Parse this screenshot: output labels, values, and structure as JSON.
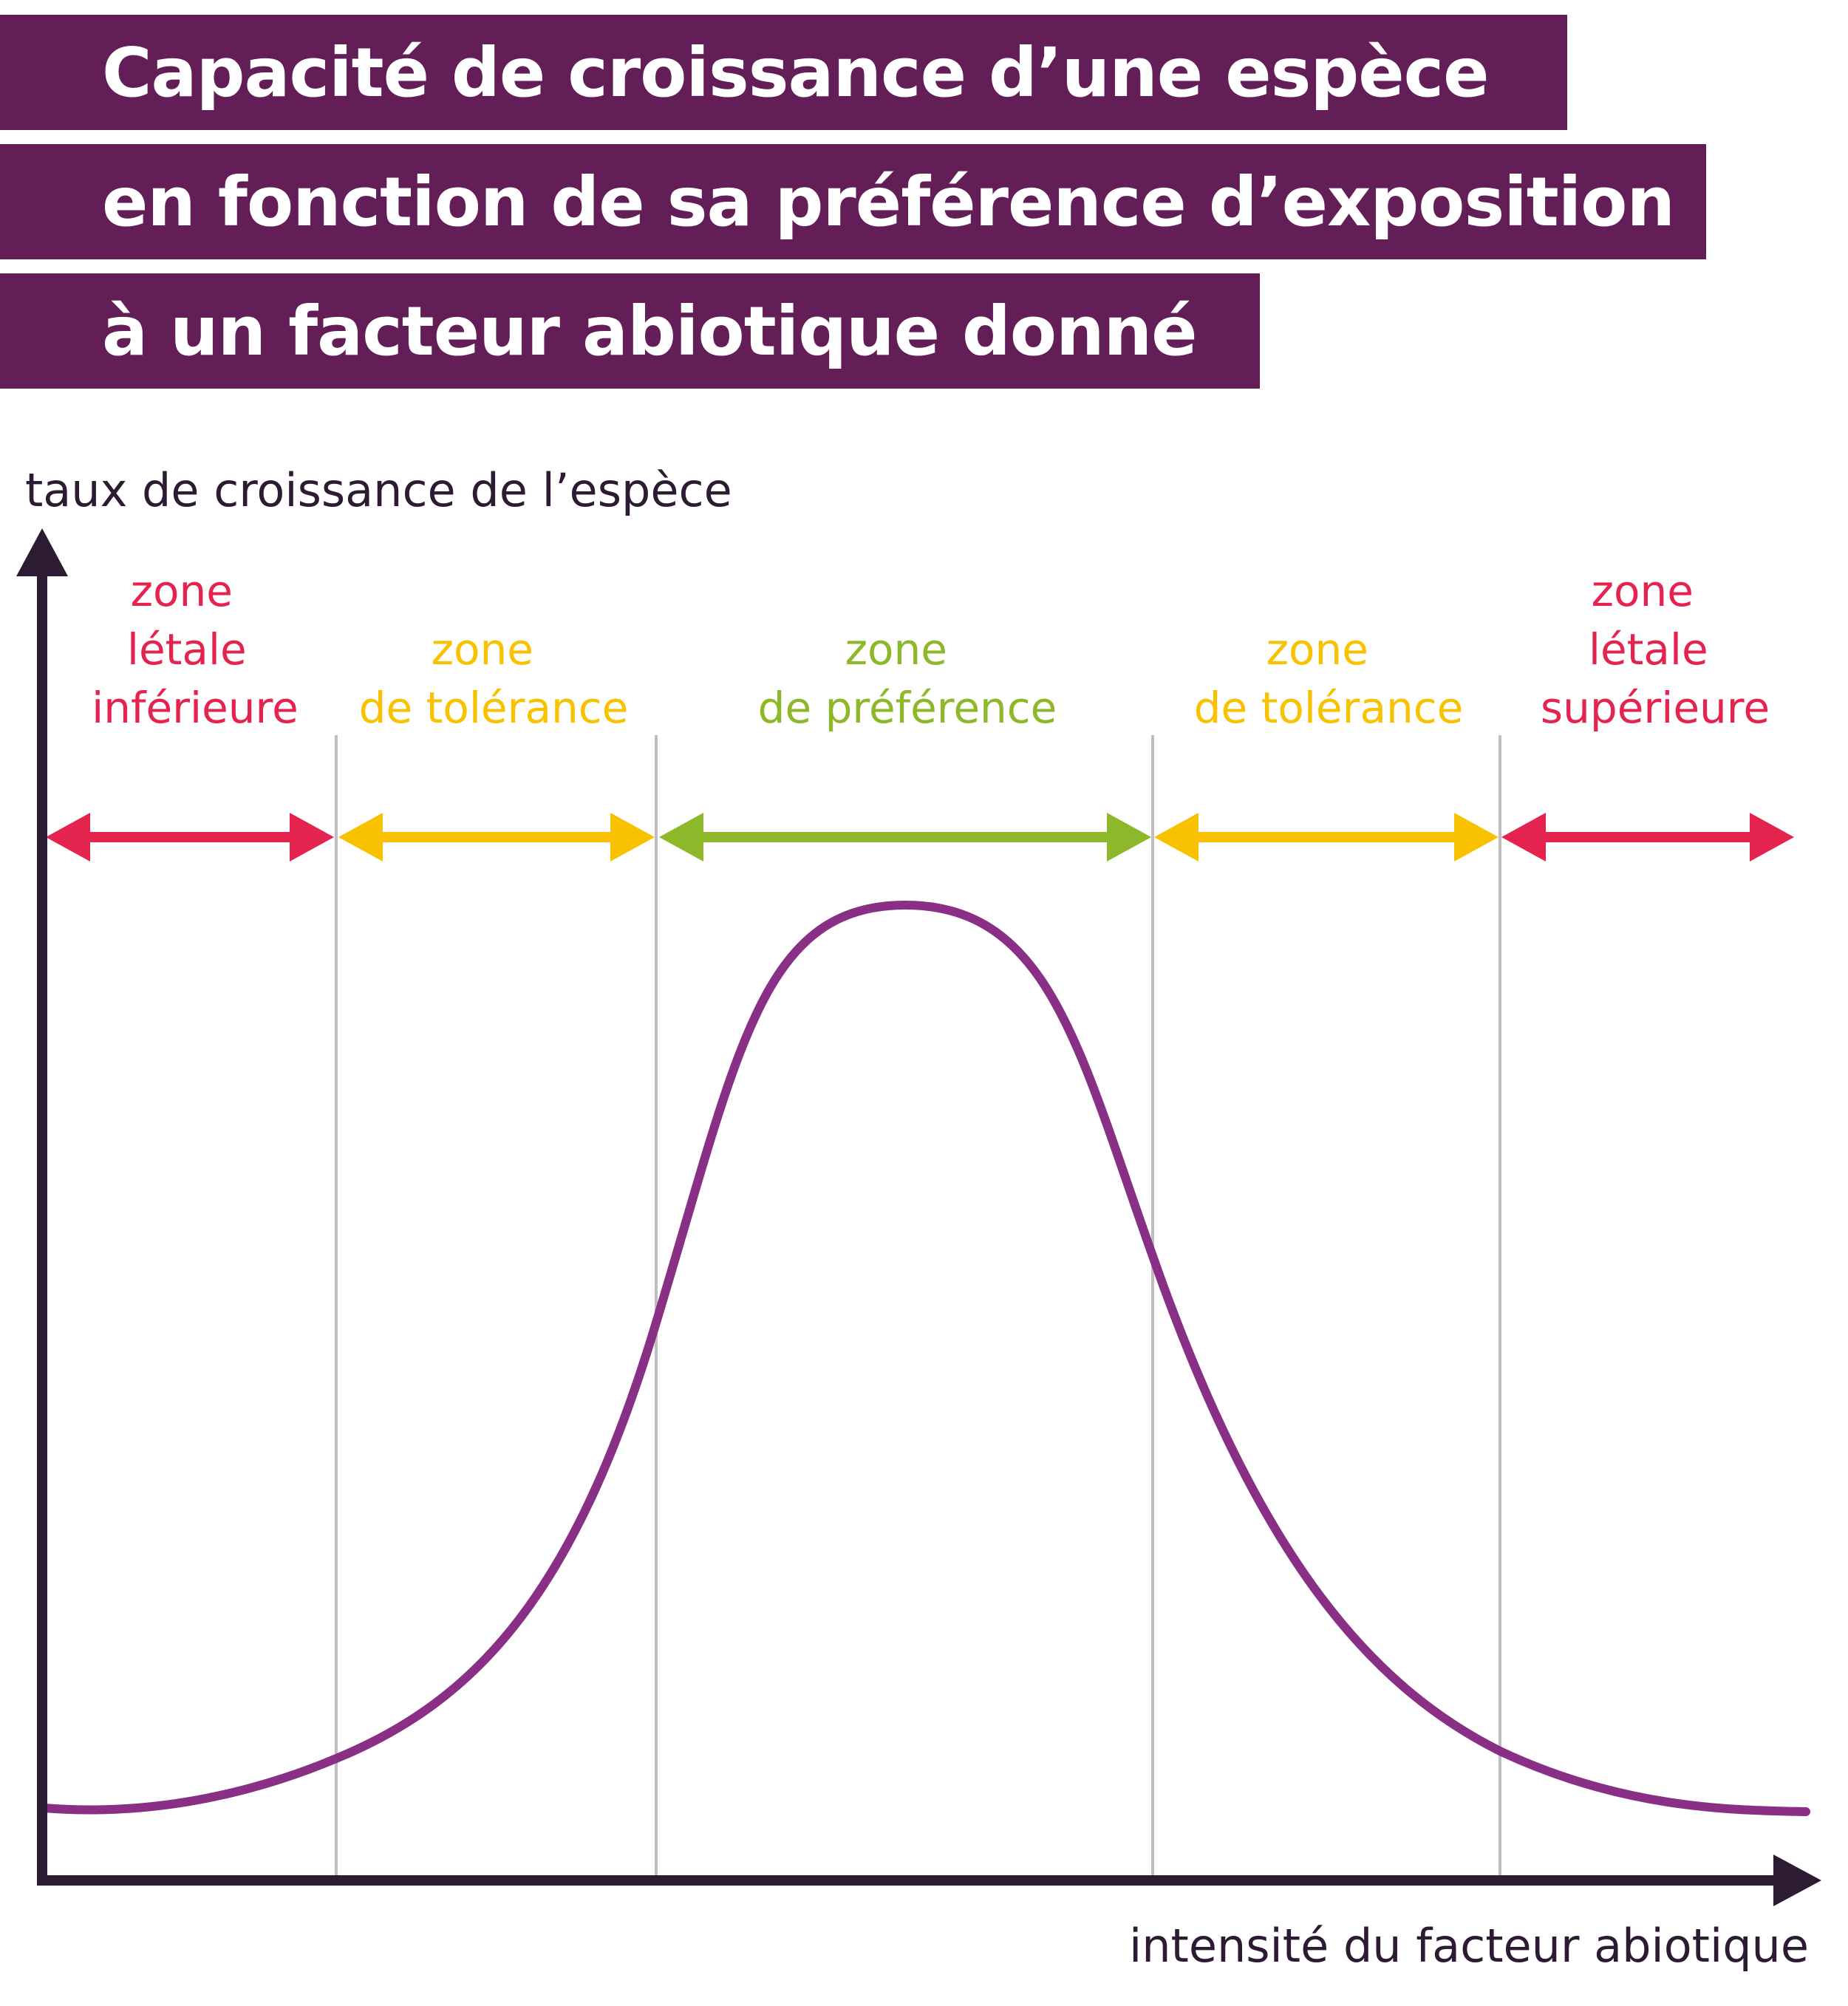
{
  "title": {
    "lines": [
      "Capacité de croissance d’une espèce",
      "en fonction de sa préférence d’exposition",
      "à un facteur abiotique donné"
    ],
    "band_color": "#631e58",
    "text_color": "#ffffff"
  },
  "axes": {
    "y_label": "taux de croissance de l’espèce",
    "x_label": "intensité du facteur abiotique",
    "color": "#2d1a33"
  },
  "zones": [
    {
      "lines": [
        "zone",
        "létale",
        "inférieure"
      ],
      "color": "#e5234f"
    },
    {
      "lines": [
        "zone",
        "de tolérance"
      ],
      "color": "#f8c200"
    },
    {
      "lines": [
        "zone",
        "de préférence"
      ],
      "color": "#8db829"
    },
    {
      "lines": [
        "zone",
        "de tolérance"
      ],
      "color": "#f8c200"
    },
    {
      "lines": [
        "zone",
        "létale",
        "supérieure"
      ],
      "color": "#e5234f"
    }
  ],
  "curve_color": "#8a2f86",
  "divider_color": "#c2bcc4"
}
